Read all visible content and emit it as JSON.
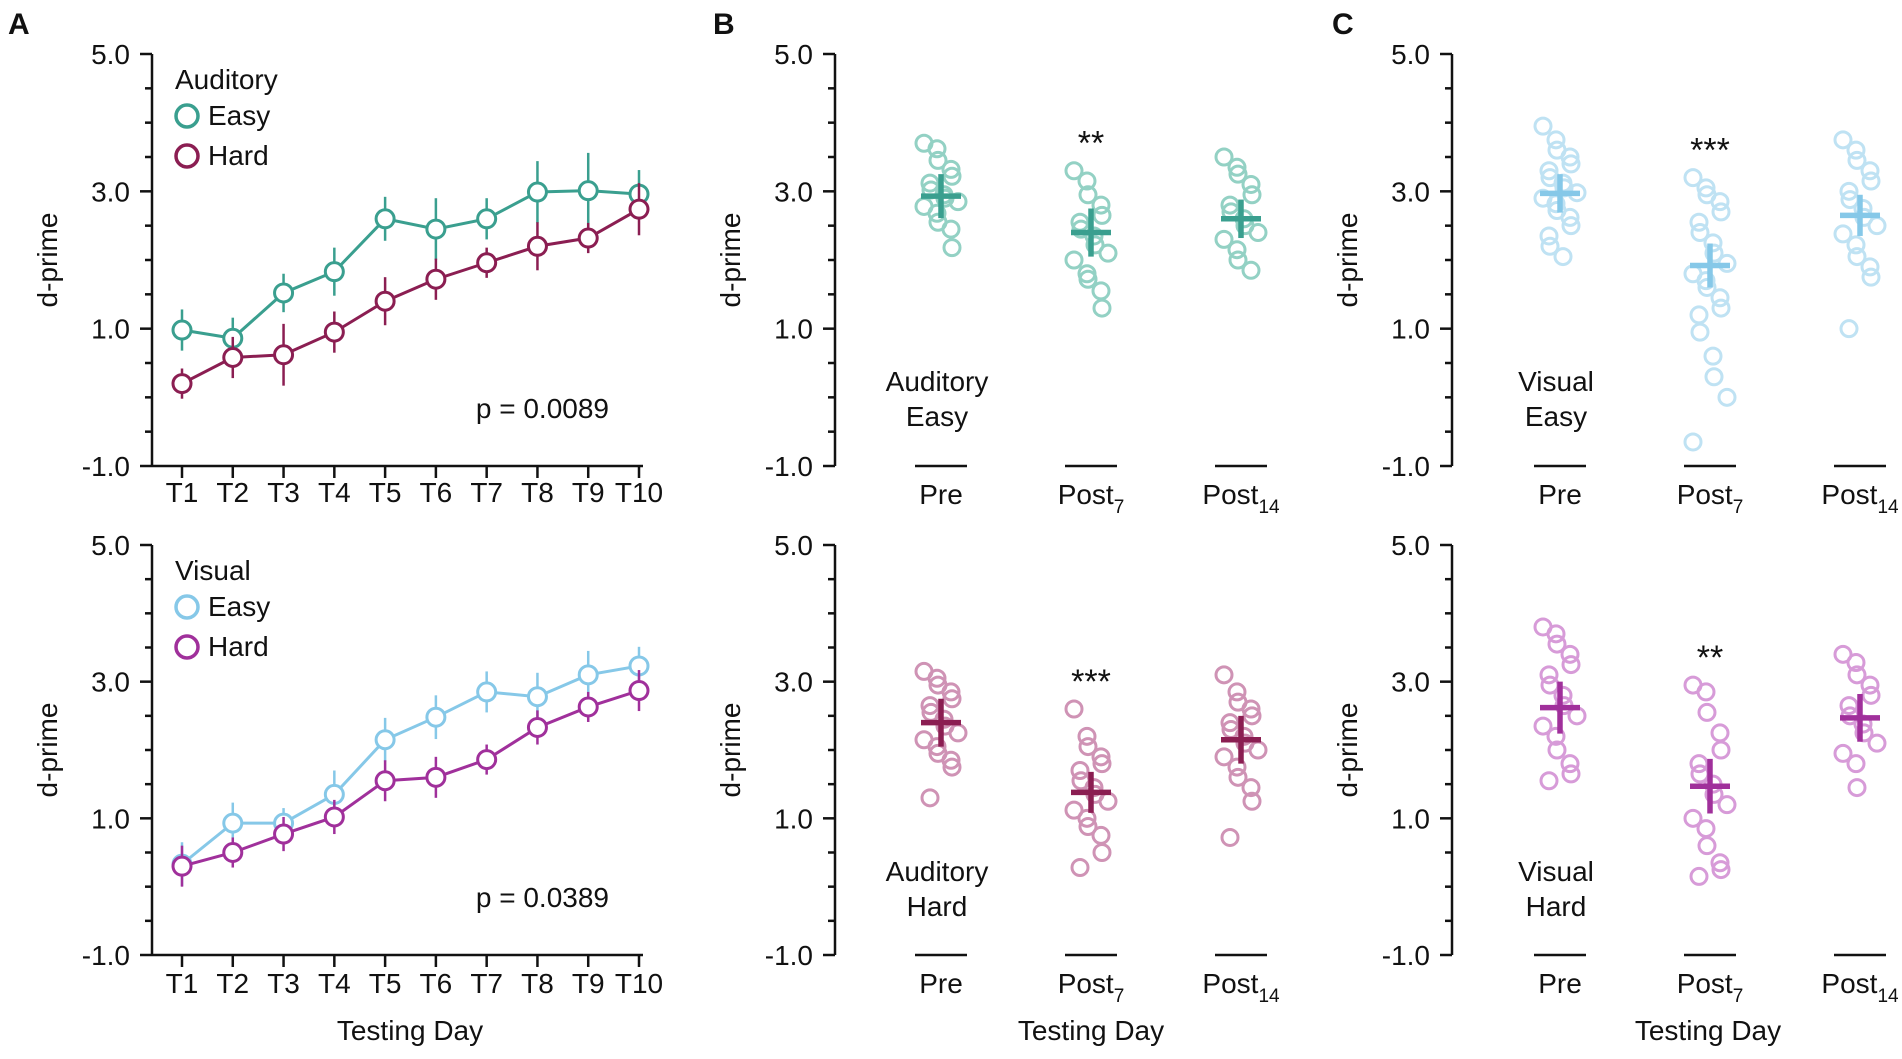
{
  "panel_letters": [
    "A",
    "B",
    "C"
  ],
  "chart_data": [
    {
      "type": "line",
      "panel": "A",
      "title": "",
      "xlabel": "",
      "ylabel": "d-prime",
      "ylim": [
        -1.0,
        5.0
      ],
      "yticks": [
        "5.0",
        "3.0",
        "1.0",
        "-1.0"
      ],
      "categories": [
        "T1",
        "T2",
        "T3",
        "T4",
        "T5",
        "T6",
        "T7",
        "T8",
        "T9",
        "T10"
      ],
      "legend_title": "Auditory",
      "legend_position": "top-left",
      "annotation": "p = 0.0089",
      "series": [
        {
          "name": "Easy",
          "color": "#3a9f8f",
          "values": [
            0.98,
            0.86,
            1.52,
            1.83,
            2.6,
            2.45,
            2.6,
            2.99,
            3.01,
            2.96
          ],
          "err": [
            0.3,
            0.3,
            0.28,
            0.35,
            0.32,
            0.45,
            0.3,
            0.45,
            0.55,
            0.35
          ]
        },
        {
          "name": "Hard",
          "color": "#8b1e52",
          "values": [
            0.2,
            0.58,
            0.62,
            0.95,
            1.4,
            1.72,
            1.96,
            2.2,
            2.32,
            2.74
          ],
          "err": [
            0.22,
            0.3,
            0.45,
            0.3,
            0.35,
            0.3,
            0.22,
            0.35,
            0.22,
            0.38
          ]
        }
      ]
    },
    {
      "type": "line",
      "panel": "A",
      "title": "",
      "xlabel": "Testing Day",
      "ylabel": "d-prime",
      "ylim": [
        -1.0,
        5.0
      ],
      "yticks": [
        "5.0",
        "3.0",
        "1.0",
        "-1.0"
      ],
      "categories": [
        "T1",
        "T2",
        "T3",
        "T4",
        "T5",
        "T6",
        "T7",
        "T8",
        "T9",
        "T10"
      ],
      "legend_title": "Visual",
      "legend_position": "top-left",
      "annotation": "p = 0.0389",
      "series": [
        {
          "name": "Easy",
          "color": "#86c8e8",
          "values": [
            0.33,
            0.93,
            0.93,
            1.35,
            2.15,
            2.48,
            2.85,
            2.78,
            3.1,
            3.23
          ],
          "err": [
            0.32,
            0.3,
            0.22,
            0.35,
            0.32,
            0.32,
            0.3,
            0.35,
            0.35,
            0.28
          ]
        },
        {
          "name": "Hard",
          "color": "#a0309b",
          "values": [
            0.3,
            0.5,
            0.77,
            1.02,
            1.55,
            1.6,
            1.86,
            2.33,
            2.63,
            2.87
          ],
          "err": [
            0.3,
            0.22,
            0.25,
            0.25,
            0.3,
            0.3,
            0.22,
            0.25,
            0.22,
            0.3
          ]
        }
      ]
    },
    {
      "type": "scatter",
      "panel": "B",
      "title": "",
      "xlabel": "",
      "ylabel": "d-prime",
      "ylim": [
        -1.0,
        5.0
      ],
      "yticks": [
        "5.0",
        "3.0",
        "1.0",
        "-1.0"
      ],
      "group_label": [
        "Auditory",
        "Easy"
      ],
      "color": "#3a9f8f",
      "point_color": "#93d1c4",
      "categories": [
        {
          "main": "Pre",
          "sub": ""
        },
        {
          "main": "Post",
          "sub": "7"
        },
        {
          "main": "Post",
          "sub": "14"
        }
      ],
      "significance": [
        "",
        "**",
        ""
      ],
      "means": [
        2.93,
        2.4,
        2.6
      ],
      "err": [
        0.32,
        0.35,
        0.28
      ],
      "points": [
        [
          3.7,
          3.62,
          3.45,
          3.32,
          3.22,
          3.12,
          3.02,
          2.95,
          2.9,
          2.85,
          2.78,
          2.68,
          2.55,
          2.45,
          2.18
        ],
        [
          3.3,
          3.15,
          2.95,
          2.8,
          2.65,
          2.55,
          2.45,
          2.35,
          2.22,
          2.1,
          2.0,
          1.8,
          1.72,
          1.55,
          1.3
        ],
        [
          3.5,
          3.35,
          3.25,
          3.1,
          2.95,
          2.8,
          2.7,
          2.6,
          2.5,
          2.4,
          2.3,
          2.15,
          2.0,
          1.85
        ]
      ]
    },
    {
      "type": "scatter",
      "panel": "B",
      "title": "",
      "xlabel": "Testing Day",
      "ylabel": "d-prime",
      "ylim": [
        -1.0,
        5.0
      ],
      "yticks": [
        "5.0",
        "3.0",
        "1.0",
        "-1.0"
      ],
      "group_label": [
        "Auditory",
        "Hard"
      ],
      "color": "#8b1e52",
      "point_color": "#cf93b5",
      "categories": [
        {
          "main": "Pre",
          "sub": ""
        },
        {
          "main": "Post",
          "sub": "7"
        },
        {
          "main": "Post",
          "sub": "14"
        }
      ],
      "significance": [
        "",
        "***",
        ""
      ],
      "means": [
        2.4,
        1.38,
        2.15
      ],
      "err": [
        0.35,
        0.3,
        0.35
      ],
      "points": [
        [
          3.15,
          3.05,
          2.95,
          2.85,
          2.75,
          2.65,
          2.55,
          2.45,
          2.35,
          2.25,
          2.15,
          2.05,
          1.95,
          1.85,
          1.75,
          1.3
        ],
        [
          2.6,
          2.2,
          2.05,
          1.9,
          1.8,
          1.7,
          1.55,
          1.45,
          1.35,
          1.25,
          1.12,
          1.0,
          0.88,
          0.75,
          0.5,
          0.28
        ],
        [
          3.1,
          2.85,
          2.7,
          2.6,
          2.5,
          2.4,
          2.3,
          2.2,
          2.1,
          2.0,
          1.9,
          1.75,
          1.6,
          1.45,
          1.25,
          0.72
        ]
      ]
    },
    {
      "type": "scatter",
      "panel": "C",
      "title": "",
      "xlabel": "",
      "ylabel": "d-prime",
      "ylim": [
        -1.0,
        5.0
      ],
      "yticks": [
        "5.0",
        "3.0",
        "1.0",
        "-1.0"
      ],
      "group_label": [
        "Visual",
        "Easy"
      ],
      "color": "#86c8e8",
      "point_color": "#bfe2f3",
      "categories": [
        {
          "main": "Pre",
          "sub": ""
        },
        {
          "main": "Post",
          "sub": "7"
        },
        {
          "main": "Post",
          "sub": "14"
        }
      ],
      "significance": [
        "",
        "***",
        ""
      ],
      "means": [
        2.97,
        1.92,
        2.65
      ],
      "err": [
        0.28,
        0.32,
        0.3
      ],
      "points": [
        [
          3.95,
          3.75,
          3.6,
          3.5,
          3.4,
          3.3,
          3.2,
          3.12,
          3.05,
          2.98,
          2.9,
          2.82,
          2.72,
          2.62,
          2.5,
          2.35,
          2.2,
          2.05
        ],
        [
          3.2,
          3.05,
          2.95,
          2.85,
          2.7,
          2.55,
          2.4,
          2.25,
          2.1,
          1.95,
          1.8,
          1.7,
          1.6,
          1.45,
          1.3,
          1.2,
          0.95,
          0.6,
          0.3,
          0.0,
          -0.65
        ],
        [
          3.75,
          3.6,
          3.45,
          3.3,
          3.15,
          3.0,
          2.88,
          2.75,
          2.62,
          2.5,
          2.38,
          2.22,
          2.05,
          1.9,
          1.75,
          1.0
        ]
      ]
    },
    {
      "type": "scatter",
      "panel": "C",
      "title": "",
      "xlabel": "Testing Day",
      "ylabel": "d-prime",
      "ylim": [
        -1.0,
        5.0
      ],
      "yticks": [
        "5.0",
        "3.0",
        "1.0",
        "-1.0"
      ],
      "group_label": [
        "Visual",
        "Hard"
      ],
      "color": "#a0309b",
      "point_color": "#d79bd8",
      "categories": [
        {
          "main": "Pre",
          "sub": ""
        },
        {
          "main": "Post",
          "sub": "7"
        },
        {
          "main": "Post",
          "sub": "14"
        }
      ],
      "significance": [
        "",
        "**",
        ""
      ],
      "means": [
        2.62,
        1.47,
        2.47
      ],
      "err": [
        0.38,
        0.4,
        0.35
      ],
      "points": [
        [
          3.8,
          3.7,
          3.55,
          3.4,
          3.25,
          3.1,
          2.95,
          2.8,
          2.65,
          2.5,
          2.35,
          2.2,
          2.0,
          1.8,
          1.65,
          1.55
        ],
        [
          2.95,
          2.85,
          2.55,
          2.25,
          2.0,
          1.8,
          1.65,
          1.5,
          1.35,
          1.2,
          1.0,
          0.85,
          0.6,
          0.35,
          0.25,
          0.15
        ],
        [
          3.4,
          3.28,
          3.1,
          2.95,
          2.8,
          2.65,
          2.5,
          2.38,
          2.25,
          2.1,
          1.95,
          1.8,
          1.45
        ]
      ]
    }
  ]
}
